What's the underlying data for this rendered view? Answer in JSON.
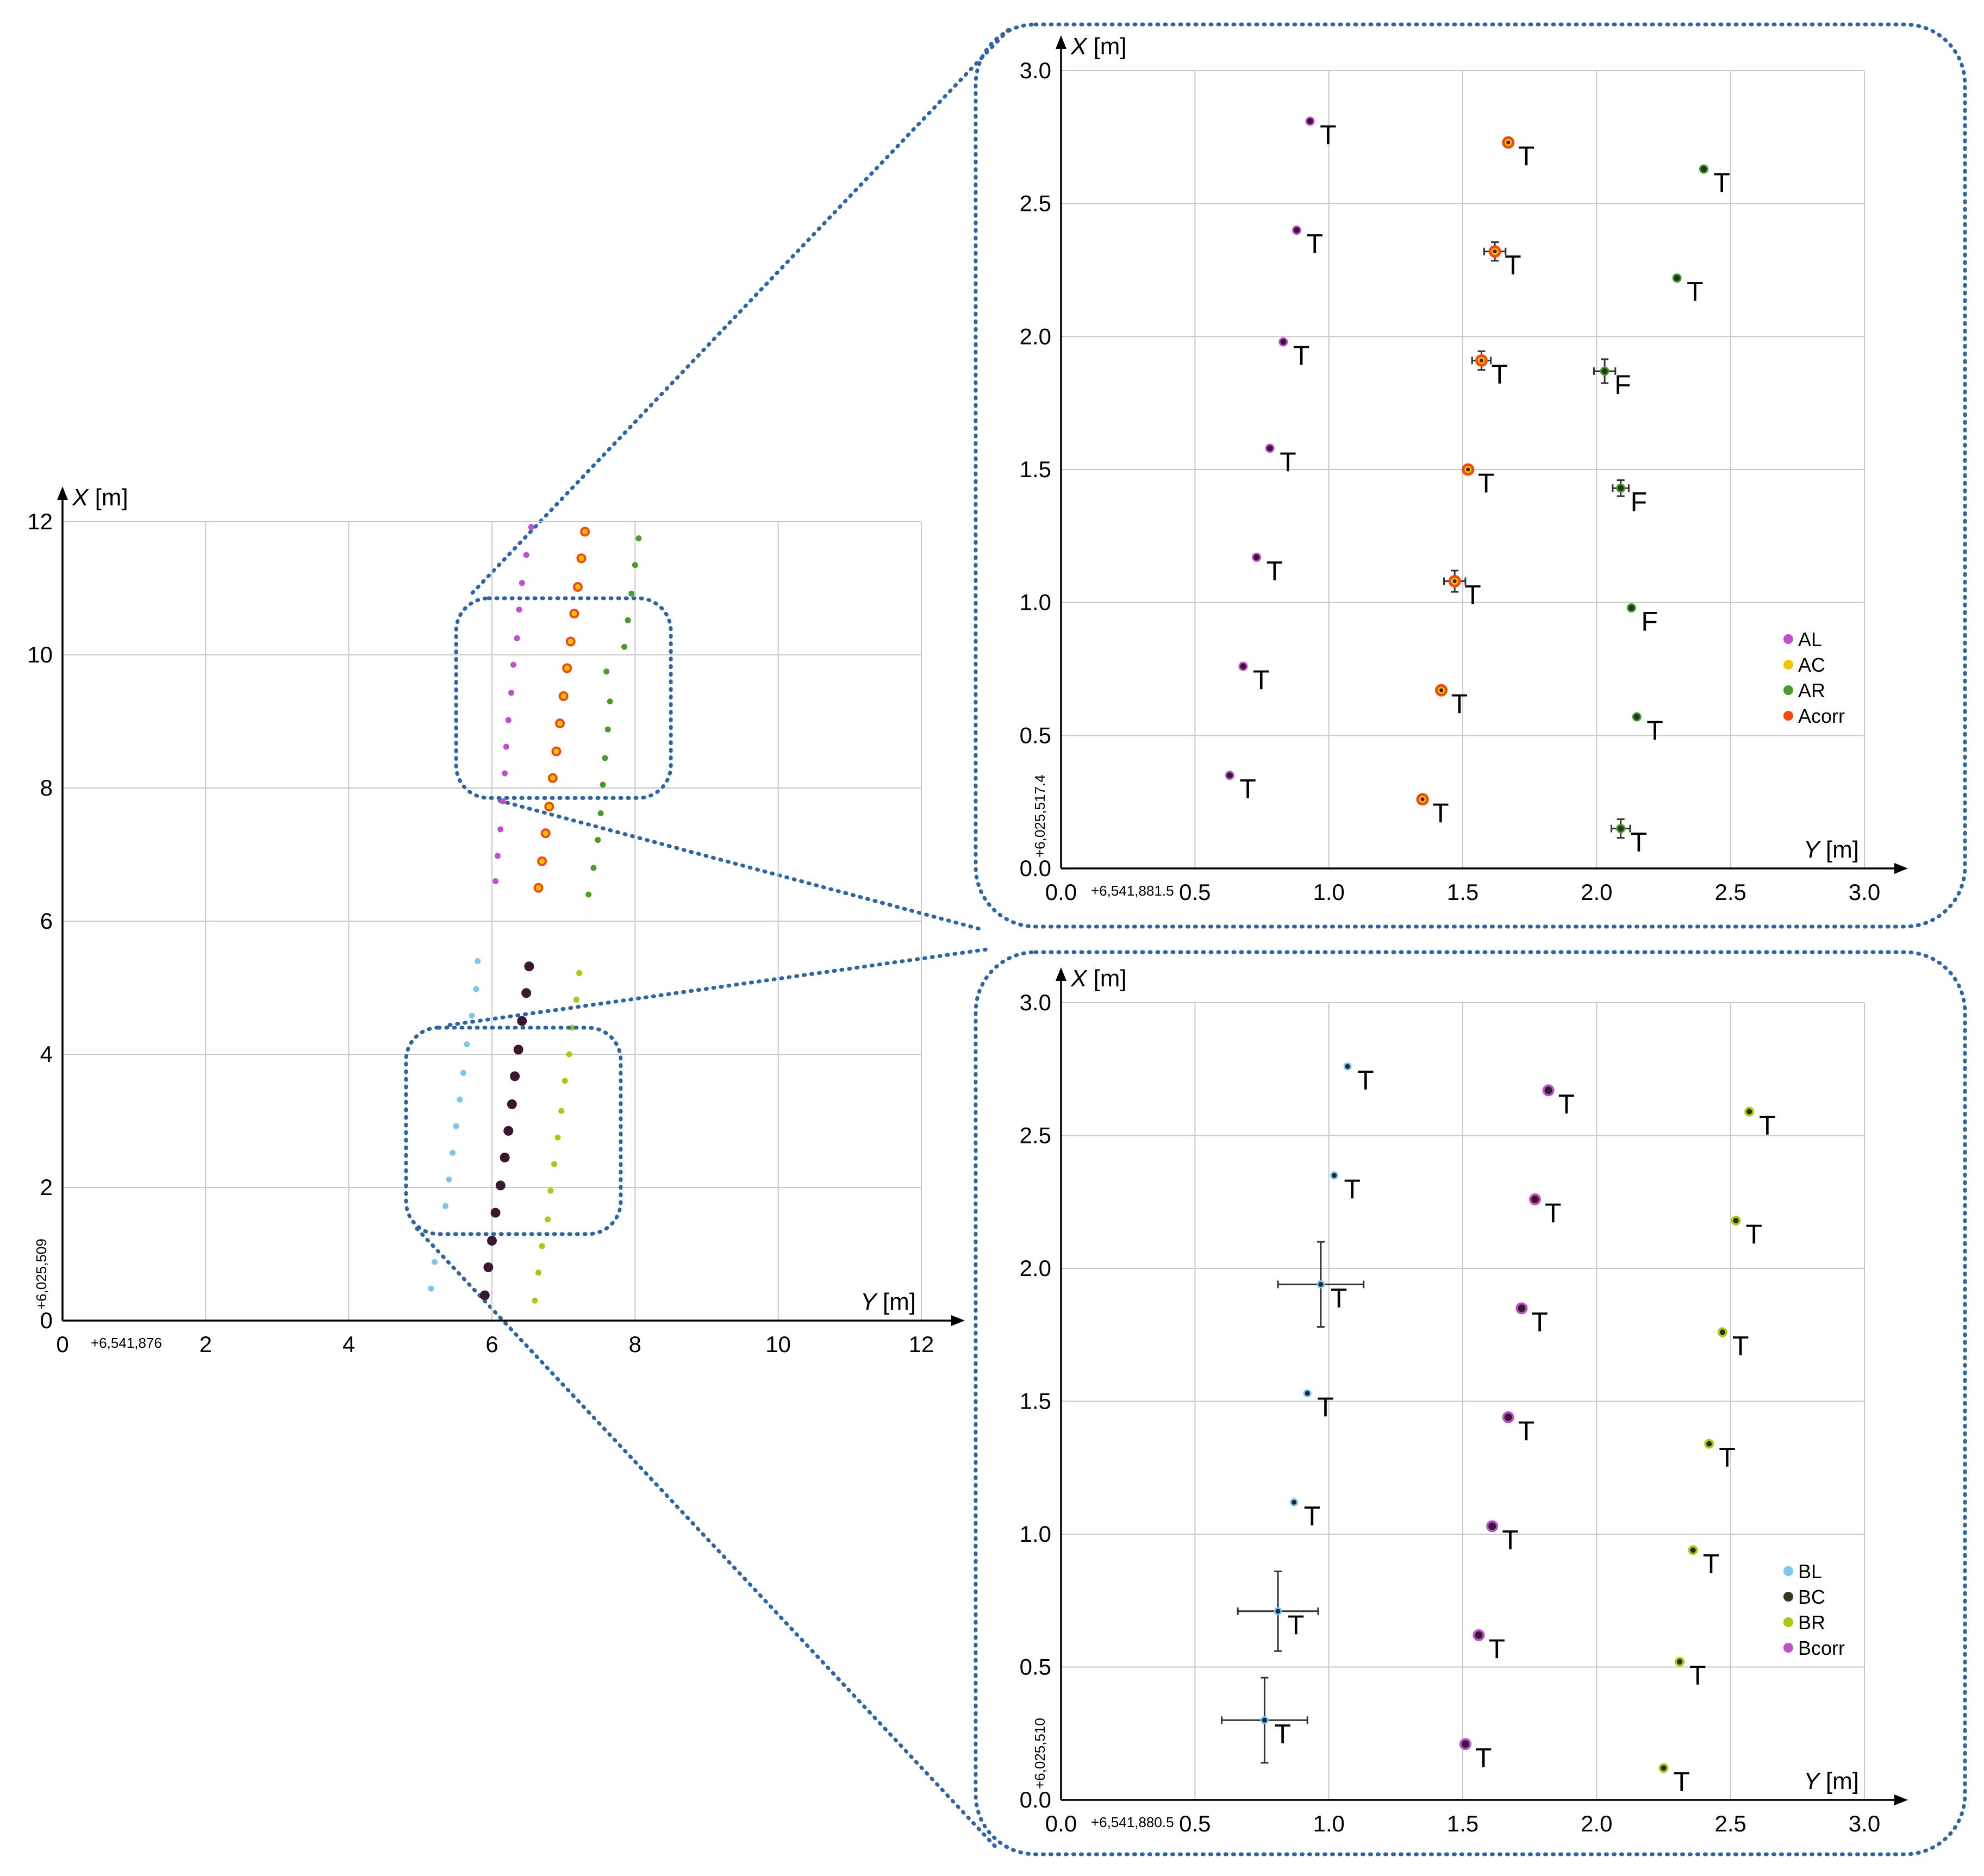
{
  "colors": {
    "AL": "#c04fd0",
    "AC": "#f5c400",
    "AR": "#4a9a2e",
    "Acorr": "#f24a10",
    "BL": "#7cc6ee",
    "BC": "#3a3520",
    "BR": "#a8c817",
    "Bcorr": "#c04fd0",
    "pt_dark": "#3a1830",
    "pt_dark_green": "#1f3a1a",
    "frame": "#2e64a4"
  },
  "chart_data": [
    {
      "id": "overview",
      "type": "scatter",
      "xlabel": "Y [m]",
      "ylabel": "X [m]",
      "x_offset_label": "+6,541,876",
      "y_offset_label": "+6,025,509",
      "xlim": [
        0,
        12
      ],
      "ylim": [
        0,
        12
      ],
      "xticks": [
        "0",
        "2",
        "4",
        "6",
        "8",
        "10",
        "12"
      ],
      "yticks": [
        "0",
        "2",
        "4",
        "6",
        "8",
        "10",
        "12"
      ],
      "grid": true,
      "series": [
        {
          "name": "AL",
          "color_key": "AL",
          "points": [
            [
              6.05,
              6.6
            ],
            [
              6.08,
              6.98
            ],
            [
              6.12,
              7.38
            ],
            [
              6.15,
              7.8
            ],
            [
              6.18,
              8.22
            ],
            [
              6.2,
              8.62
            ],
            [
              6.23,
              9.02
            ],
            [
              6.27,
              9.43
            ],
            [
              6.3,
              9.85
            ],
            [
              6.35,
              10.25
            ],
            [
              6.38,
              10.68
            ],
            [
              6.42,
              11.08
            ],
            [
              6.48,
              11.5
            ],
            [
              6.55,
              11.92
            ]
          ]
        },
        {
          "name": "Acorr",
          "color_key": "Acorr",
          "points": [
            [
              6.65,
              6.5
            ],
            [
              6.7,
              6.9
            ],
            [
              6.75,
              7.32
            ],
            [
              6.8,
              7.72
            ],
            [
              6.85,
              8.15
            ],
            [
              6.9,
              8.55
            ],
            [
              6.95,
              8.97
            ],
            [
              7.0,
              9.38
            ],
            [
              7.05,
              9.8
            ],
            [
              7.1,
              10.2
            ],
            [
              7.15,
              10.62
            ],
            [
              7.2,
              11.02
            ],
            [
              7.25,
              11.45
            ],
            [
              7.3,
              11.85
            ]
          ]
        },
        {
          "name": "AR",
          "color_key": "AR",
          "points": [
            [
              7.35,
              6.4
            ],
            [
              7.42,
              6.8
            ],
            [
              7.48,
              7.22
            ],
            [
              7.52,
              7.62
            ],
            [
              7.55,
              8.05
            ],
            [
              7.58,
              8.45
            ],
            [
              7.62,
              8.88
            ],
            [
              7.65,
              9.3
            ],
            [
              7.6,
              9.75
            ],
            [
              7.85,
              10.12
            ],
            [
              7.9,
              10.52
            ],
            [
              7.95,
              10.92
            ],
            [
              8.0,
              11.35
            ],
            [
              8.05,
              11.75
            ]
          ]
        },
        {
          "name": "BL",
          "color_key": "BL",
          "points": [
            [
              5.15,
              0.48
            ],
            [
              5.2,
              0.88
            ],
            [
              5.35,
              1.72
            ],
            [
              5.4,
              2.12
            ],
            [
              5.45,
              2.52
            ],
            [
              5.5,
              2.92
            ],
            [
              5.55,
              3.32
            ],
            [
              5.6,
              3.72
            ],
            [
              5.65,
              4.15
            ],
            [
              5.72,
              4.58
            ],
            [
              5.78,
              4.98
            ],
            [
              5.8,
              5.4
            ]
          ]
        },
        {
          "name": "Bcorr",
          "color_key": "pt_dark",
          "points": [
            [
              5.9,
              0.38
            ],
            [
              5.95,
              0.8
            ],
            [
              6.0,
              1.2
            ],
            [
              6.05,
              1.62
            ],
            [
              6.12,
              2.03
            ],
            [
              6.18,
              2.45
            ],
            [
              6.23,
              2.85
            ],
            [
              6.28,
              3.25
            ],
            [
              6.32,
              3.67
            ],
            [
              6.37,
              4.07
            ],
            [
              6.42,
              4.5
            ],
            [
              6.48,
              4.92
            ],
            [
              6.52,
              5.32
            ]
          ]
        },
        {
          "name": "BR",
          "color_key": "BR",
          "points": [
            [
              6.6,
              0.3
            ],
            [
              6.65,
              0.72
            ],
            [
              6.7,
              1.12
            ],
            [
              6.78,
              1.52
            ],
            [
              6.82,
              1.95
            ],
            [
              6.87,
              2.35
            ],
            [
              6.92,
              2.75
            ],
            [
              6.97,
              3.15
            ],
            [
              7.02,
              3.6
            ],
            [
              7.08,
              4.0
            ],
            [
              7.12,
              4.4
            ],
            [
              7.18,
              4.82
            ],
            [
              7.22,
              5.22
            ]
          ]
        }
      ],
      "zoom_boxes": [
        {
          "target": "zoom_A",
          "ylim_data": [
            7.85,
            10.85
          ],
          "xlim_data": [
            5.5,
            8.5
          ]
        },
        {
          "target": "zoom_B",
          "ylim_data": [
            1.3,
            4.4
          ],
          "xlim_data": [
            4.8,
            7.8
          ]
        }
      ]
    },
    {
      "id": "zoom_A",
      "type": "scatter",
      "xlabel": "Y [m]",
      "ylabel": "X [m]",
      "x_offset_label": "+6,541,881.5",
      "y_offset_label": "+6,025,517.4",
      "xlim": [
        0,
        3
      ],
      "ylim": [
        0,
        3
      ],
      "xticks": [
        "0.0",
        "0.5",
        "1.0",
        "1.5",
        "2.0",
        "2.5",
        "3.0"
      ],
      "yticks": [
        "0.0",
        "0.5",
        "1.0",
        "1.5",
        "2.0",
        "2.5",
        "3.0"
      ],
      "grid": true,
      "legend": {
        "position": "right",
        "entries": [
          {
            "label": "AL",
            "color_key": "AL"
          },
          {
            "label": "AC",
            "color_key": "AC"
          },
          {
            "label": "AR",
            "color_key": "AR"
          },
          {
            "label": "Acorr",
            "color_key": "Acorr"
          }
        ]
      },
      "points": [
        {
          "x": 0.63,
          "y": 0.35,
          "kind": "AL",
          "label": "T"
        },
        {
          "x": 0.68,
          "y": 0.76,
          "kind": "AL",
          "label": "T"
        },
        {
          "x": 0.73,
          "y": 1.17,
          "kind": "AL",
          "label": "T"
        },
        {
          "x": 0.78,
          "y": 1.58,
          "kind": "AL",
          "label": "T"
        },
        {
          "x": 0.83,
          "y": 1.98,
          "kind": "AL",
          "label": "T"
        },
        {
          "x": 0.88,
          "y": 2.4,
          "kind": "AL",
          "label": "T"
        },
        {
          "x": 0.93,
          "y": 2.81,
          "kind": "AL",
          "label": "T"
        },
        {
          "x": 1.35,
          "y": 0.26,
          "kind": "AC",
          "label": "T"
        },
        {
          "x": 1.42,
          "y": 0.67,
          "kind": "AC",
          "label": "T"
        },
        {
          "x": 1.47,
          "y": 1.08,
          "kind": "AC",
          "label": "T",
          "xerr": 0.04,
          "yerr": 0.04
        },
        {
          "x": 1.52,
          "y": 1.5,
          "kind": "AC",
          "label": "T"
        },
        {
          "x": 1.57,
          "y": 1.91,
          "kind": "AC",
          "label": "T",
          "xerr": 0.035,
          "yerr": 0.035
        },
        {
          "x": 1.62,
          "y": 2.32,
          "kind": "AC",
          "label": "T",
          "xerr": 0.04,
          "yerr": 0.035
        },
        {
          "x": 1.67,
          "y": 2.73,
          "kind": "AC",
          "label": "T"
        },
        {
          "x": 2.09,
          "y": 0.15,
          "kind": "AR",
          "label": "T",
          "xerr": 0.035,
          "yerr": 0.035
        },
        {
          "x": 2.15,
          "y": 0.57,
          "kind": "AR",
          "label": "T"
        },
        {
          "x": 2.13,
          "y": 0.98,
          "kind": "AR",
          "label": "F"
        },
        {
          "x": 2.09,
          "y": 1.43,
          "kind": "AR",
          "label": "F",
          "xerr": 0.03,
          "yerr": 0.03
        },
        {
          "x": 2.03,
          "y": 1.87,
          "kind": "AR",
          "label": "F",
          "xerr": 0.04,
          "yerr": 0.045
        },
        {
          "x": 2.3,
          "y": 2.22,
          "kind": "AR",
          "label": "T"
        },
        {
          "x": 2.4,
          "y": 2.63,
          "kind": "AR",
          "label": "T"
        }
      ]
    },
    {
      "id": "zoom_B",
      "type": "scatter",
      "xlabel": "Y [m]",
      "ylabel": "X [m]",
      "x_offset_label": "+6,541,880.5",
      "y_offset_label": "+6,025,510",
      "xlim": [
        0,
        3
      ],
      "ylim": [
        0,
        3
      ],
      "xticks": [
        "0.0",
        "0.5",
        "1.0",
        "1.5",
        "2.0",
        "2.5",
        "3.0"
      ],
      "yticks": [
        "0.0",
        "0.5",
        "1.0",
        "1.5",
        "2.0",
        "2.5",
        "3.0"
      ],
      "grid": true,
      "legend": {
        "position": "right",
        "entries": [
          {
            "label": "BL",
            "color_key": "BL"
          },
          {
            "label": "BC",
            "color_key": "BC"
          },
          {
            "label": "BR",
            "color_key": "BR"
          },
          {
            "label": "Bcorr",
            "color_key": "Bcorr"
          }
        ]
      },
      "points": [
        {
          "x": 0.76,
          "y": 0.3,
          "kind": "BL",
          "label": "T",
          "xerr": 0.16,
          "yerr": 0.16
        },
        {
          "x": 0.81,
          "y": 0.71,
          "kind": "BL",
          "label": "T",
          "xerr": 0.15,
          "yerr": 0.15
        },
        {
          "x": 0.87,
          "y": 1.12,
          "kind": "BL",
          "label": "T"
        },
        {
          "x": 0.92,
          "y": 1.53,
          "kind": "BL",
          "label": "T"
        },
        {
          "x": 0.97,
          "y": 1.94,
          "kind": "BL",
          "label": "T",
          "xerr": 0.16,
          "yerr": 0.16
        },
        {
          "x": 1.02,
          "y": 2.35,
          "kind": "BL",
          "label": "T"
        },
        {
          "x": 1.07,
          "y": 2.76,
          "kind": "BL",
          "label": "T"
        },
        {
          "x": 1.51,
          "y": 0.21,
          "kind": "BC",
          "label": "T"
        },
        {
          "x": 1.56,
          "y": 0.62,
          "kind": "BC",
          "label": "T"
        },
        {
          "x": 1.61,
          "y": 1.03,
          "kind": "BC",
          "label": "T"
        },
        {
          "x": 1.67,
          "y": 1.44,
          "kind": "BC",
          "label": "T"
        },
        {
          "x": 1.72,
          "y": 1.85,
          "kind": "BC",
          "label": "T"
        },
        {
          "x": 1.77,
          "y": 2.26,
          "kind": "BC",
          "label": "T"
        },
        {
          "x": 1.82,
          "y": 2.67,
          "kind": "BC",
          "label": "T"
        },
        {
          "x": 2.25,
          "y": 0.12,
          "kind": "BR",
          "label": "T"
        },
        {
          "x": 2.31,
          "y": 0.52,
          "kind": "BR",
          "label": "T"
        },
        {
          "x": 2.36,
          "y": 0.94,
          "kind": "BR",
          "label": "T"
        },
        {
          "x": 2.42,
          "y": 1.34,
          "kind": "BR",
          "label": "T"
        },
        {
          "x": 2.47,
          "y": 1.76,
          "kind": "BR",
          "label": "T"
        },
        {
          "x": 2.52,
          "y": 2.18,
          "kind": "BR",
          "label": "T"
        },
        {
          "x": 2.57,
          "y": 2.59,
          "kind": "BR",
          "label": "T"
        }
      ]
    }
  ]
}
